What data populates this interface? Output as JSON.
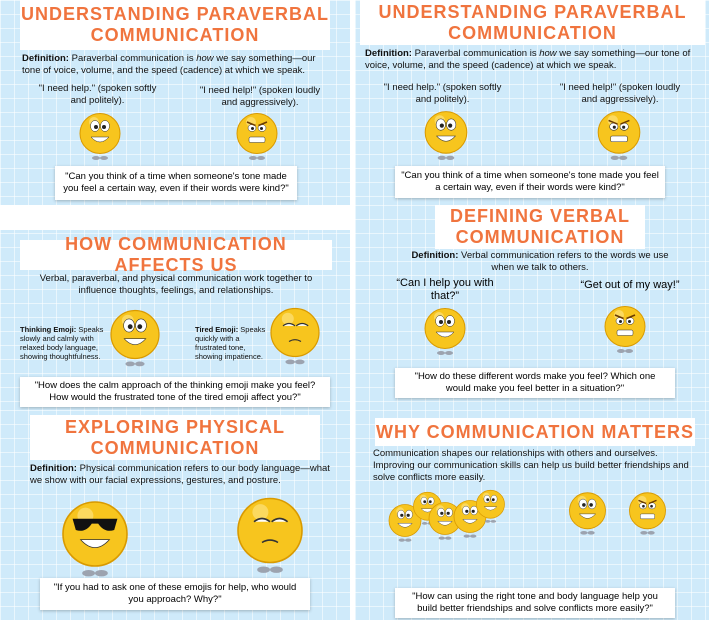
{
  "slides": [
    {
      "title": "UNDERSTANDING PARAVERBAL COMMUNICATION",
      "definition": {
        "label": "Definition:",
        "before": "Paraverbal communication is ",
        "emphasis": "how",
        "after": " we say something—our tone of voice, volume, and the speed (cadence) at which we speak."
      },
      "quotes": [
        "\"I need help.\" (spoken softly and politely).",
        "\"I need help!\" (spoken loudly and aggressively)."
      ],
      "question": "\"Can you think of a time when someone's tone made you feel a certain way, even if their words were kind?\""
    },
    {
      "title": "UNDERSTANDING PARAVERBAL COMMUNICATION",
      "definition": {
        "label": "Definition:",
        "before": "Paraverbal communication is ",
        "emphasis": "how",
        "after": " we say something—our tone of voice, volume, and the speed (cadence) at which we speak."
      },
      "quotes": [
        "\"I need help.\" (spoken softly and politely).",
        "\"I need help!\" (spoken loudly and aggressively)."
      ],
      "question": "\"Can you think of a time when someone's tone made you feel a certain way, even if their words were kind?\""
    },
    {
      "title": "HOW COMMUNICATION AFFECTS US",
      "intro": "Verbal, paraverbal, and physical communication work together to influence thoughts, feelings, and relationships.",
      "labels": [
        {
          "name": "Thinking Emoji:",
          "text": " Speaks slowly and calmly with relaxed body language, showing thoughtfulness."
        },
        {
          "name": "Tired Emoji:",
          "text": " Speaks quickly with a frustrated tone, showing impatience."
        }
      ],
      "question": "\"How does the calm approach of the thinking emoji make you feel? How would the frustrated tone of the tired emoji affect you?\""
    },
    {
      "title": "DEFINING VERBAL COMMUNICATION",
      "definition": {
        "label": "Definition:",
        "text": " Verbal communication refers to the words we use when we talk to others."
      },
      "quotes": [
        "“Can I help you with that?”",
        "“Get out of my way!”"
      ],
      "question": "\"How do these different words make you feel? Which one would make you feel better in a situation?\""
    },
    {
      "title": "EXPLORING PHYSICAL COMMUNICATION",
      "definition": {
        "label": "Definition:",
        "text": " Physical communication refers to our body language—what we show with our facial expressions, gestures, and posture."
      },
      "question": "\"If you had to ask one of these emojis for help, who would you approach? Why?\""
    },
    {
      "title": "WHY COMMUNICATION MATTERS",
      "intro": "Communication shapes our relationships with others and ourselves. Improving our communication skills can help us build better friendships and solve conflicts more easily.",
      "question": "\"How can using the right tone and body language help you build better friendships and solve conflicts more easily?\""
    }
  ]
}
